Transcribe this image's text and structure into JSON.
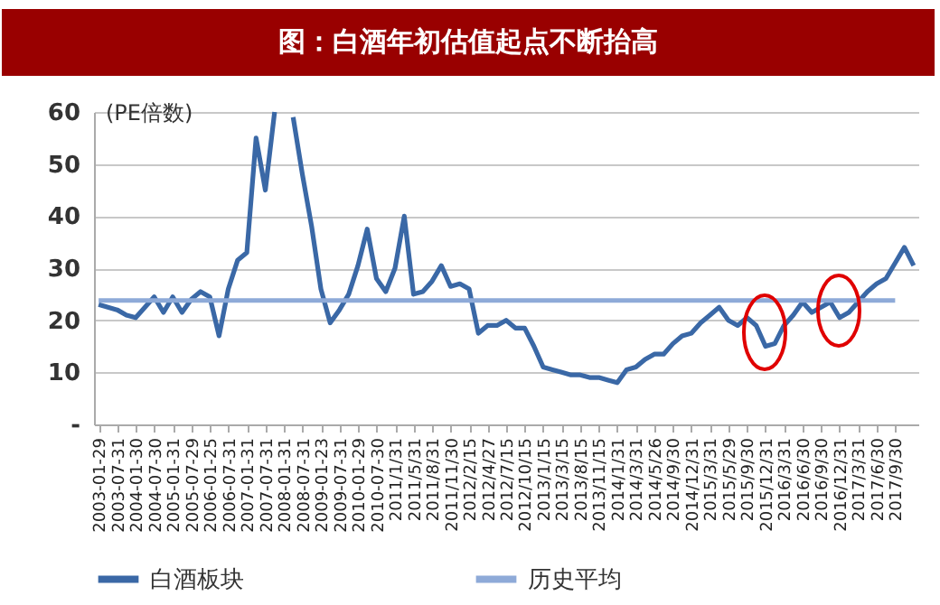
{
  "chart_data": {
    "type": "line",
    "title": "图：白酒年初估值起点不断抬高",
    "ylabel": "(PE倍数)",
    "categories": [
      "2003-01-29",
      null,
      "2003-07-31",
      null,
      "2004-01-30",
      null,
      "2004-07-30",
      null,
      "2005-01-31",
      null,
      "2005-07-29",
      null,
      "2006-01-25",
      null,
      "2006-07-31",
      null,
      "2007-01-31",
      null,
      "2007-07-31",
      null,
      "2008-01-31",
      null,
      "2008-07-31",
      null,
      "2009-01-23",
      null,
      "2009-07-31",
      null,
      "2010-01-29",
      null,
      "2010-07-30",
      null,
      "2011/1/31",
      null,
      "2011/5/31",
      null,
      "2011/8/31",
      null,
      "2011/11/30",
      null,
      "2012/2/15",
      null,
      "2012/4/27",
      null,
      "2012/7/15",
      null,
      "2012/10/15",
      null,
      "2013/1/15",
      null,
      "2013/3/15",
      null,
      "2013/8/15",
      null,
      "2013/11/15",
      null,
      "2014/1/31",
      null,
      "2014/3/31",
      null,
      "2014/5/26",
      null,
      "2014/9/30",
      null,
      "2014/12/31",
      null,
      "2015/3/31",
      null,
      "2015/5/29",
      null,
      "2015/9/30",
      null,
      "2015/12/31",
      null,
      "2016/3/31",
      null,
      "2016/6/30",
      null,
      "2016/9/30",
      null,
      "2016/12/31",
      null,
      "2017/3/31",
      null,
      "2017/6/30",
      null,
      "2017/9/30",
      null,
      null
    ],
    "series": [
      {
        "name": "白酒板块",
        "color": "#3a68a6",
        "values": [
          23,
          22.5,
          22,
          21,
          20.5,
          22.5,
          24.5,
          21.5,
          24.5,
          21.5,
          24,
          25.5,
          24.5,
          17,
          26,
          31.5,
          33,
          55,
          45,
          60,
          null,
          59,
          48,
          38,
          26,
          19.5,
          22,
          25,
          30.5,
          37.5,
          28,
          25.5,
          30,
          40,
          25,
          25.5,
          27.5,
          30.5,
          26.5,
          27,
          26,
          17.5,
          19,
          19,
          20,
          18.5,
          18.5,
          15,
          11,
          10.5,
          10,
          9.5,
          9.5,
          9,
          9,
          8.5,
          8,
          10.5,
          11,
          12.5,
          13.5,
          13.5,
          15.5,
          17,
          17.5,
          19.5,
          21,
          22.5,
          20,
          19,
          20.5,
          19,
          15,
          15.5,
          19,
          21,
          23.5,
          21.5,
          22.5,
          23.5,
          20.5,
          21.5,
          23.5,
          25.5,
          27,
          28,
          31,
          34,
          30.5
        ]
      },
      {
        "name": "历史平均",
        "color": "#8eaad8",
        "values": [
          23.8,
          23.8,
          23.8,
          23.8,
          23.8,
          23.8,
          23.8,
          23.8,
          23.8,
          23.8,
          23.8,
          23.8,
          23.8,
          23.8,
          23.8,
          23.8,
          23.8,
          23.8,
          23.8,
          23.8,
          23.8,
          23.8,
          23.8,
          23.8,
          23.8,
          23.8,
          23.8,
          23.8,
          23.8,
          23.8,
          23.8,
          23.8,
          23.8,
          23.8,
          23.8,
          23.8,
          23.8,
          23.8,
          23.8,
          23.8,
          23.8,
          23.8,
          23.8,
          23.8,
          23.8,
          23.8,
          23.8,
          23.8,
          23.8,
          23.8,
          23.8,
          23.8,
          23.8,
          23.8,
          23.8,
          23.8,
          23.8,
          23.8,
          23.8,
          23.8,
          23.8,
          23.8,
          23.8,
          23.8,
          23.8,
          23.8,
          23.8,
          23.8,
          23.8,
          23.8,
          23.8,
          23.8,
          23.8,
          23.8,
          23.8,
          23.8,
          23.8,
          23.8,
          23.8,
          23.8,
          23.8,
          23.8,
          23.8,
          23.8,
          23.8,
          23.8,
          23.8,
          null,
          null
        ]
      }
    ],
    "ylim": [
      0,
      60
    ],
    "yticks": [
      {
        "value": 0,
        "label": "-"
      },
      10,
      20,
      30,
      40,
      50,
      60
    ],
    "grid": "y",
    "legend": "bottom"
  }
}
